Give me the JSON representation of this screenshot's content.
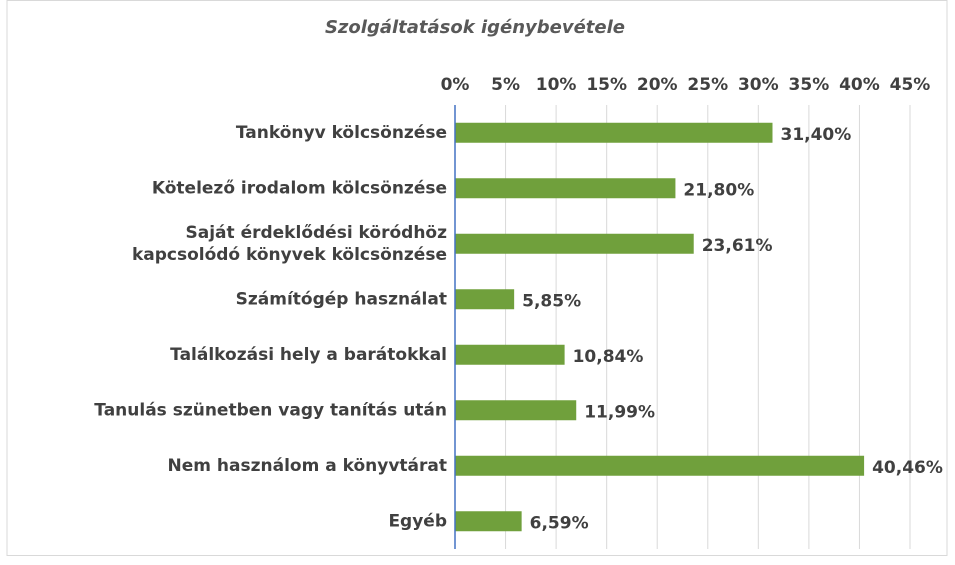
{
  "chart_data": {
    "type": "bar",
    "orientation": "horizontal",
    "title": "Szolgáltatások igénybevétele",
    "categories": [
      "Tankönyv kölcsönzése",
      "Kötelező irodalom kölcsönzése",
      "Saját érdeklődési köródhöz\nkapcsolódó könyvek kölcsönzése",
      "Számítógép használat",
      "Találkozási hely a barátokkal",
      "Tanulás szünetben vagy tanítás után",
      "Nem használom a könyvtárat",
      "Egyéb"
    ],
    "values": [
      31.4,
      21.8,
      23.61,
      5.85,
      10.84,
      11.99,
      40.46,
      6.59
    ],
    "value_labels": [
      "31,40%",
      "21,80%",
      "23,61%",
      "5,85%",
      "10,84%",
      "11,99%",
      "40,46%",
      "6,59%"
    ],
    "color": "#70a03c",
    "xlim": [
      0,
      45
    ],
    "xticks": [
      {
        "value": 0,
        "label": "0%"
      },
      {
        "value": 5,
        "label": "5%"
      },
      {
        "value": 10,
        "label": "10%"
      },
      {
        "value": 15,
        "label": "15%"
      },
      {
        "value": 20,
        "label": "20%"
      },
      {
        "value": 25,
        "label": "25%"
      },
      {
        "value": 30,
        "label": "30%"
      },
      {
        "value": 35,
        "label": "35%"
      },
      {
        "value": 40,
        "label": "40%"
      },
      {
        "value": 45,
        "label": "45%"
      }
    ],
    "grid": true
  }
}
